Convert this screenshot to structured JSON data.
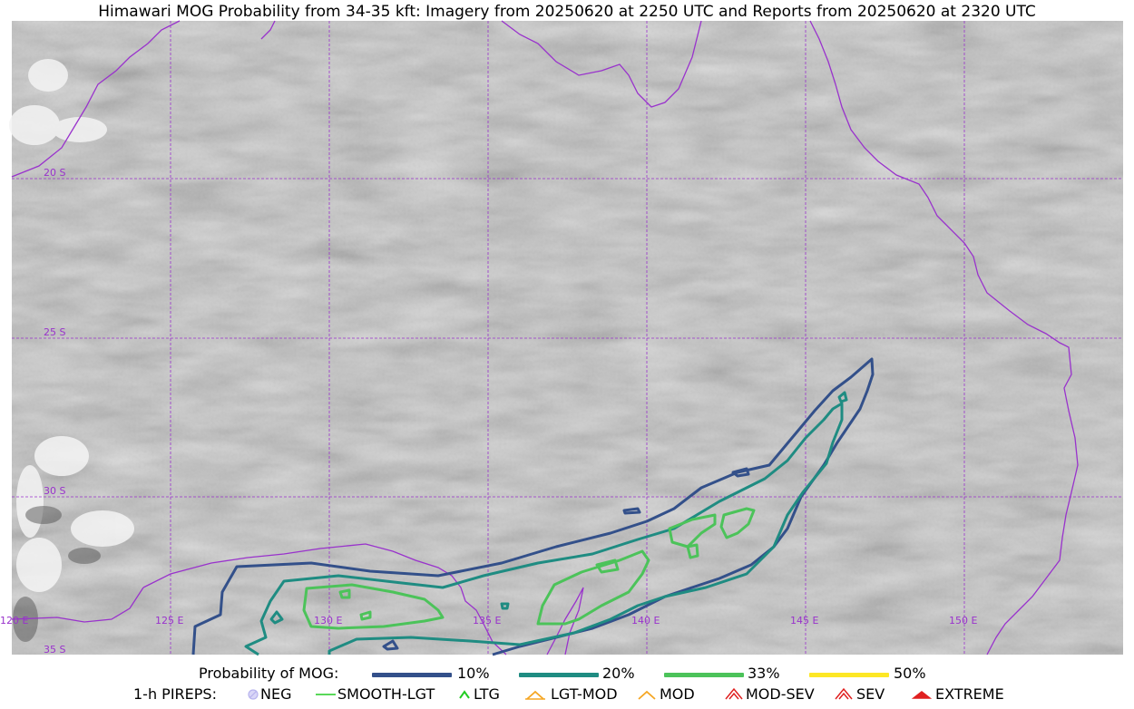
{
  "title": "Himawari MOG Probability from 34-35 kft: Imagery from 20250620 at 2250 UTC and Reports from 20250620 at 2320 UTC",
  "map": {
    "lat_labels": [
      "20 S",
      "25 S",
      "30 S",
      "35 S"
    ],
    "lon_labels": [
      "120 E",
      "125 E",
      "130 E",
      "135 E",
      "140 E",
      "145 E",
      "150 E"
    ],
    "graticule_color": "#9932cc",
    "coastline_color": "#9932cc",
    "imagery": "grayscale satellite imagery"
  },
  "legend": {
    "probability": {
      "label": "Probability of MOG:",
      "items": [
        {
          "label": "10%",
          "color": "#33508a"
        },
        {
          "label": "20%",
          "color": "#1f8c82"
        },
        {
          "label": "33%",
          "color": "#4cc35a"
        },
        {
          "label": "50%",
          "color": "#fde725"
        }
      ]
    },
    "pireps": {
      "label": "1-h PIREPS:",
      "items": [
        {
          "label": "NEG",
          "icon": "neg-icon",
          "color": "#b7b3ee"
        },
        {
          "label": "SMOOTH-LGT",
          "icon": "smooth-lgt-icon",
          "color": "#22cc22"
        },
        {
          "label": "LTG",
          "icon": "ltg-icon",
          "color": "#22cc22"
        },
        {
          "label": "LGT-MOD",
          "icon": "lgt-mod-icon",
          "color": "#f5a623"
        },
        {
          "label": "MOD",
          "icon": "mod-icon",
          "color": "#f5a623"
        },
        {
          "label": "MOD-SEV",
          "icon": "mod-sev-icon",
          "color": "#e02020"
        },
        {
          "label": "SEV",
          "icon": "sev-icon",
          "color": "#e02020"
        },
        {
          "label": "EXTREME",
          "icon": "extreme-icon",
          "color": "#e02020"
        }
      ]
    }
  }
}
